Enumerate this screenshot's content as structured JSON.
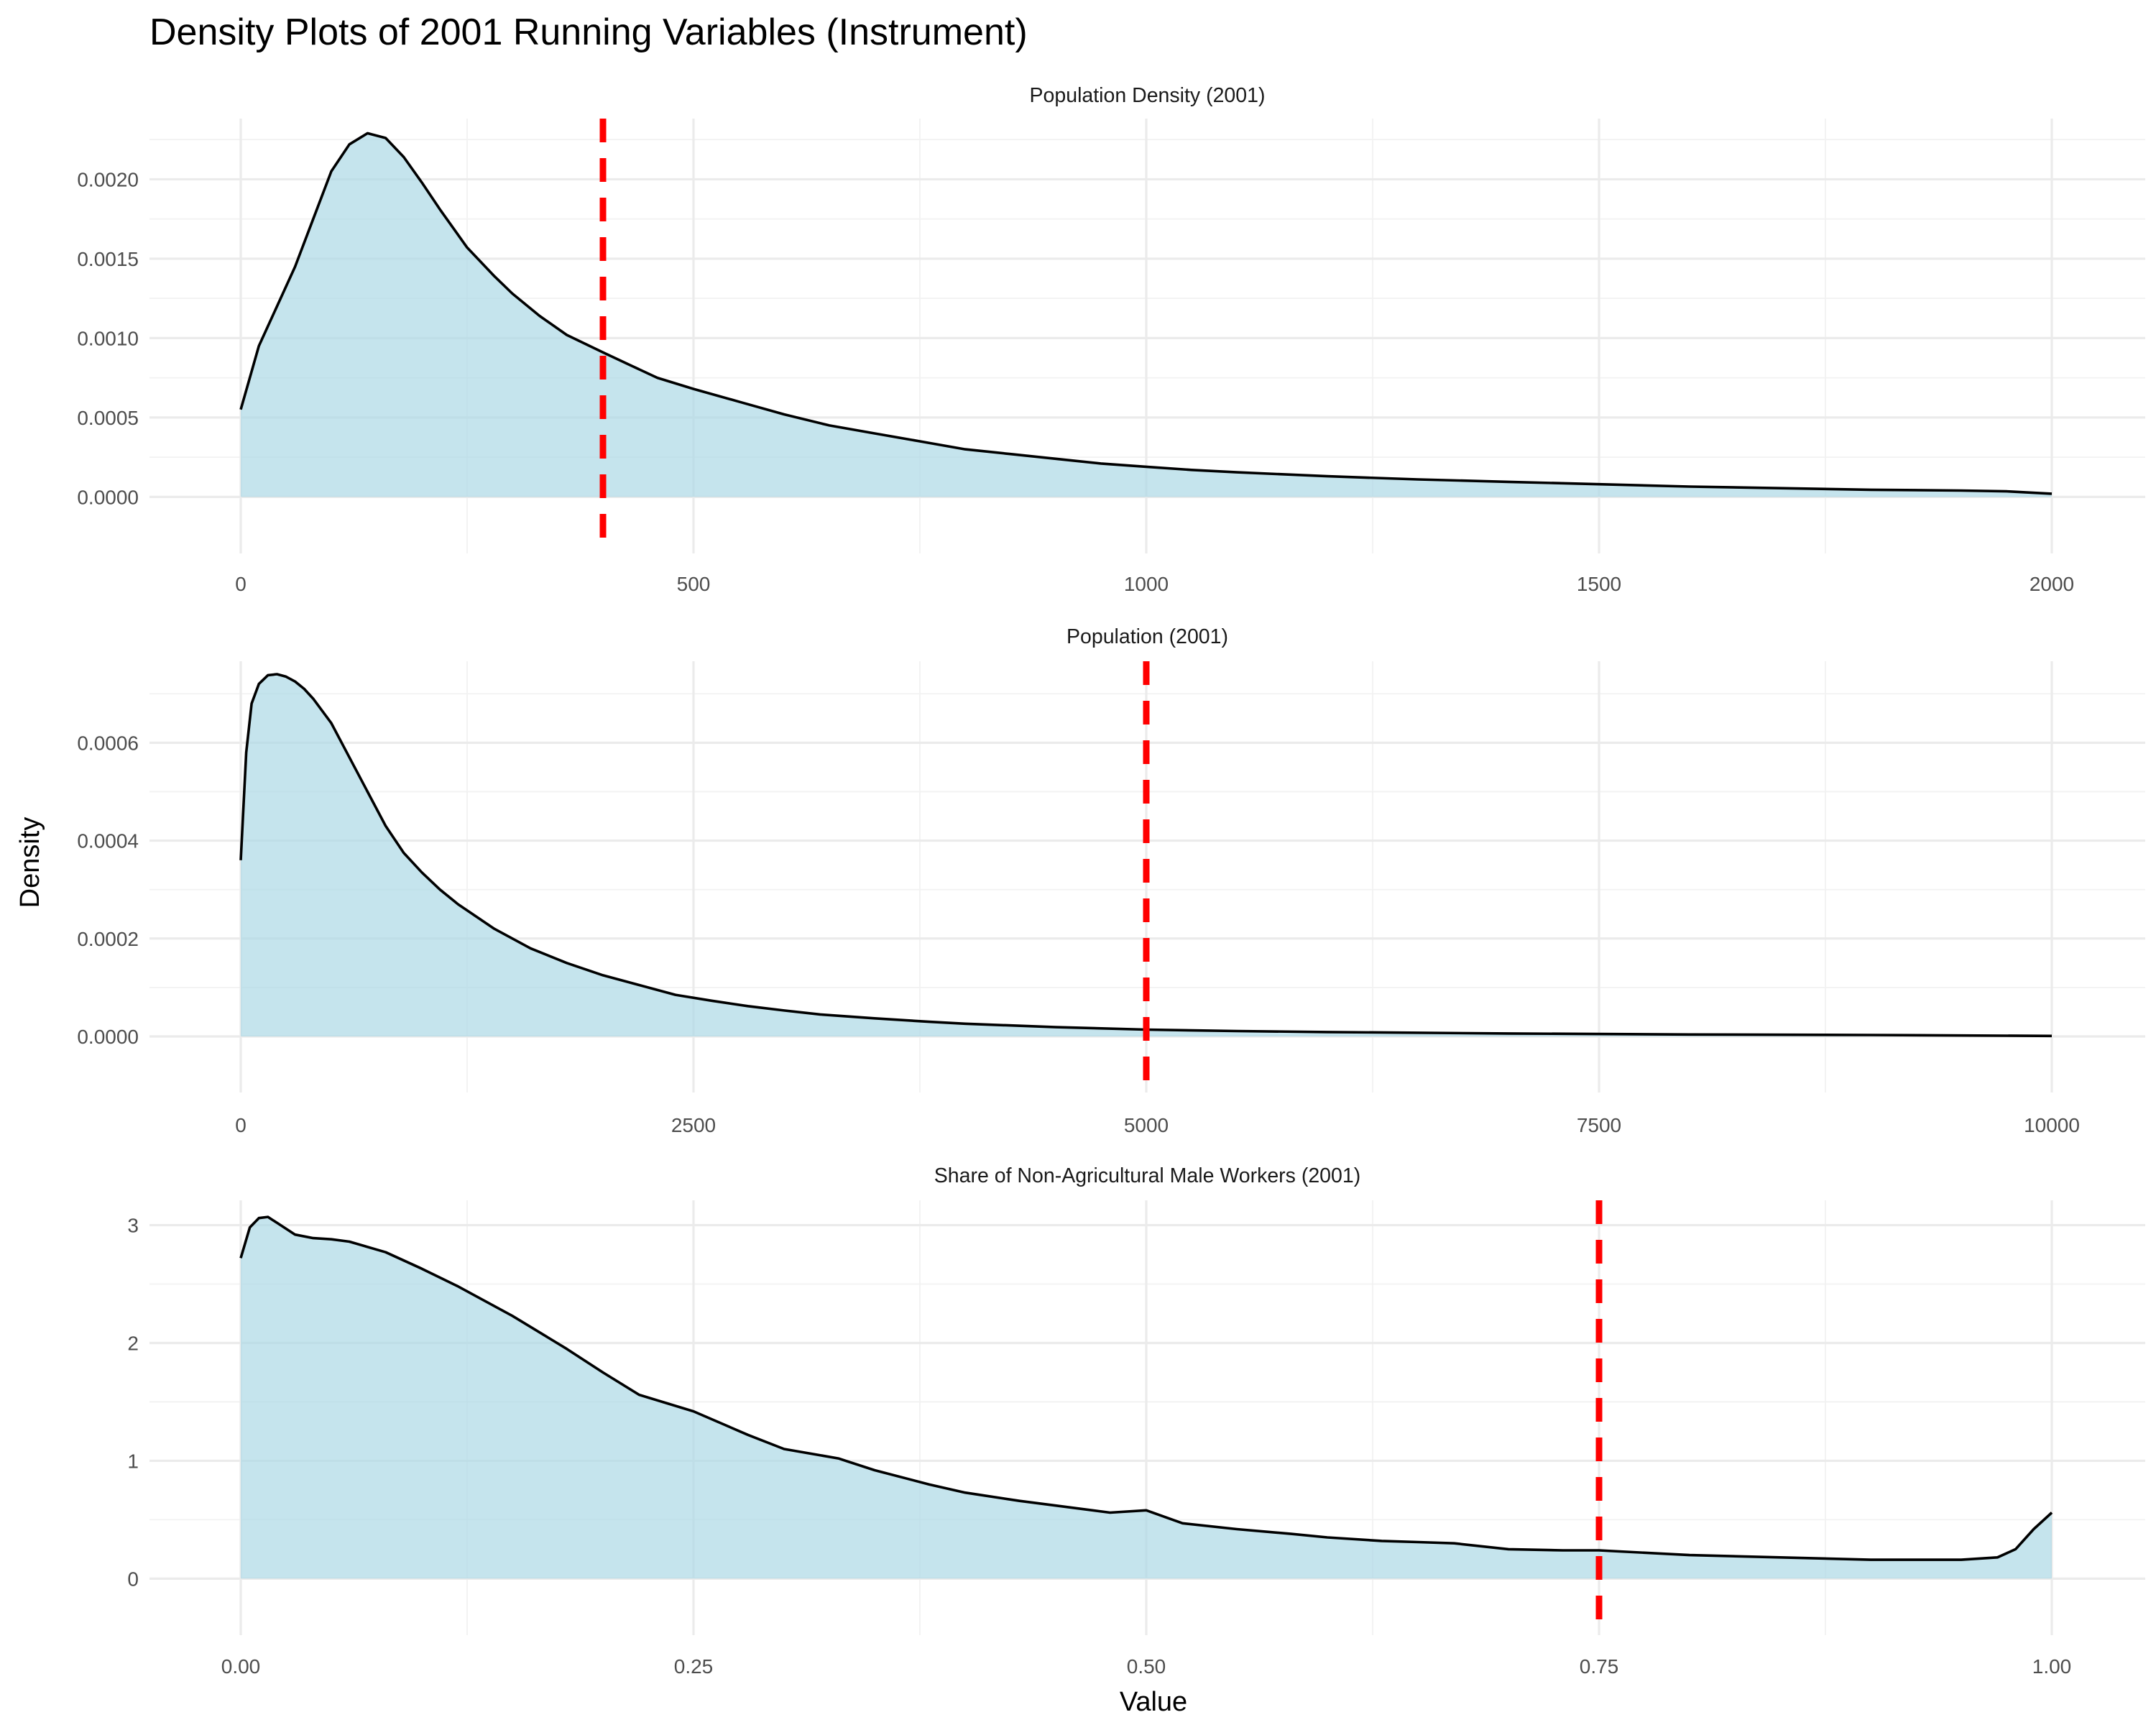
{
  "title": "Density Plots of 2001 Running Variables (Instrument)",
  "xlabel": "Value",
  "ylabel": "Density",
  "colors": {
    "fill": "#add8e6",
    "line": "#000000",
    "cutoff": "#ff0000"
  },
  "chart_data": [
    {
      "type": "area",
      "title": "Population Density (2001)",
      "xlim": [
        0,
        2000
      ],
      "ylim": [
        0,
        0.0023
      ],
      "xticks": [
        0,
        500,
        1000,
        1500,
        2000
      ],
      "xtick_labels": [
        "0",
        "500",
        "1000",
        "1500",
        "2000"
      ],
      "yticks": [
        0,
        0.0005,
        0.001,
        0.0015,
        0.002
      ],
      "ytick_labels": [
        "0.0000",
        "0.0005",
        "0.0010",
        "0.0015",
        "0.0020"
      ],
      "cutoff": 400,
      "x": [
        0,
        10,
        20,
        40,
        60,
        80,
        100,
        120,
        140,
        160,
        180,
        200,
        220,
        250,
        280,
        300,
        330,
        360,
        400,
        430,
        460,
        500,
        550,
        600,
        650,
        700,
        750,
        800,
        850,
        900,
        950,
        1000,
        1050,
        1100,
        1200,
        1300,
        1400,
        1500,
        1600,
        1700,
        1800,
        1900,
        1950,
        2000
      ],
      "y": [
        0.00055,
        0.00075,
        0.00095,
        0.0012,
        0.00145,
        0.00175,
        0.00205,
        0.00222,
        0.00229,
        0.00226,
        0.00214,
        0.00198,
        0.00181,
        0.00157,
        0.00139,
        0.00128,
        0.00114,
        0.00102,
        0.00091,
        0.00083,
        0.00075,
        0.00068,
        0.0006,
        0.00052,
        0.00045,
        0.0004,
        0.00035,
        0.0003,
        0.00027,
        0.00024,
        0.00021,
        0.00019,
        0.00017,
        0.000155,
        0.00013,
        0.00011,
        9.5e-05,
        8e-05,
        6.5e-05,
        5.5e-05,
        4.5e-05,
        4e-05,
        3.5e-05,
        2e-05
      ]
    },
    {
      "type": "area",
      "title": "Population (2001)",
      "xlim": [
        0,
        10000
      ],
      "ylim": [
        0,
        0.00074
      ],
      "xticks": [
        0,
        2500,
        5000,
        7500,
        10000
      ],
      "xtick_labels": [
        "0",
        "2500",
        "5000",
        "7500",
        "10000"
      ],
      "yticks": [
        0,
        0.0002,
        0.0004,
        0.0006
      ],
      "ytick_labels": [
        "0.0000",
        "0.0002",
        "0.0004",
        "0.0006"
      ],
      "cutoff": 5000,
      "x": [
        0,
        30,
        60,
        100,
        150,
        200,
        250,
        300,
        350,
        400,
        500,
        600,
        700,
        800,
        900,
        1000,
        1100,
        1200,
        1400,
        1600,
        1800,
        2000,
        2200,
        2400,
        2600,
        2800,
        3000,
        3200,
        3500,
        3800,
        4000,
        4500,
        5000,
        5500,
        6000,
        7000,
        8000,
        9000,
        10000
      ],
      "y": [
        0.00036,
        0.00058,
        0.00068,
        0.00072,
        0.000738,
        0.00074,
        0.000735,
        0.000725,
        0.00071,
        0.00069,
        0.00064,
        0.00057,
        0.0005,
        0.00043,
        0.000375,
        0.000335,
        0.0003,
        0.00027,
        0.00022,
        0.00018,
        0.00015,
        0.000125,
        0.000105,
        8.5e-05,
        7.3e-05,
        6.2e-05,
        5.3e-05,
        4.5e-05,
        3.7e-05,
        3e-05,
        2.6e-05,
        1.9e-05,
        1.4e-05,
        1.1e-05,
        9e-06,
        6e-06,
        4e-06,
        3e-06,
        1e-06
      ]
    },
    {
      "type": "area",
      "title": "Share of Non-Agricultural Male Workers (2001)",
      "xlim": [
        0,
        1
      ],
      "ylim": [
        0,
        3.1
      ],
      "xticks": [
        0,
        0.25,
        0.5,
        0.75,
        1
      ],
      "xtick_labels": [
        "0.00",
        "0.25",
        "0.50",
        "0.75",
        "1.00"
      ],
      "yticks": [
        0,
        1,
        2,
        3
      ],
      "ytick_labels": [
        "0",
        "1",
        "2",
        "3"
      ],
      "cutoff": 0.75,
      "x": [
        0,
        0.005,
        0.01,
        0.015,
        0.02,
        0.03,
        0.04,
        0.05,
        0.06,
        0.08,
        0.1,
        0.12,
        0.15,
        0.18,
        0.2,
        0.22,
        0.25,
        0.28,
        0.3,
        0.33,
        0.35,
        0.38,
        0.4,
        0.43,
        0.45,
        0.48,
        0.5,
        0.52,
        0.55,
        0.58,
        0.6,
        0.63,
        0.65,
        0.67,
        0.7,
        0.73,
        0.75,
        0.8,
        0.85,
        0.9,
        0.95,
        0.97,
        0.98,
        0.99,
        1
      ],
      "y": [
        2.72,
        2.98,
        3.06,
        3.07,
        3.02,
        2.92,
        2.89,
        2.88,
        2.86,
        2.77,
        2.63,
        2.48,
        2.23,
        1.95,
        1.75,
        1.56,
        1.42,
        1.22,
        1.1,
        1.02,
        0.92,
        0.8,
        0.73,
        0.66,
        0.62,
        0.56,
        0.58,
        0.47,
        0.42,
        0.38,
        0.35,
        0.32,
        0.31,
        0.3,
        0.25,
        0.24,
        0.24,
        0.2,
        0.18,
        0.16,
        0.16,
        0.18,
        0.25,
        0.42,
        0.56
      ]
    }
  ]
}
